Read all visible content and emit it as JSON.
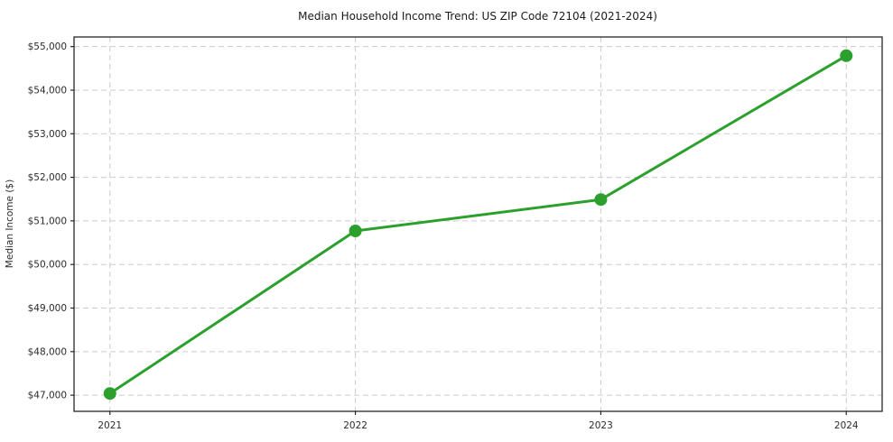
{
  "figure": {
    "title": "Median Household Income Trend: US ZIP Code 72104 (2021-2024)"
  },
  "chart_data": {
    "type": "line",
    "title": "Median Household Income Trend: US ZIP Code 72104 (2021-2024)",
    "xlabel": "",
    "ylabel": "Median Income ($)",
    "categories": [
      "2021",
      "2022",
      "2023",
      "2024"
    ],
    "series": [
      {
        "name": "Median Household Income",
        "values": [
          47040,
          50770,
          51490,
          54790
        ],
        "color": "#2ca02c",
        "marker": "circle",
        "line_width": 3,
        "marker_radius": 7
      }
    ],
    "yticks": [
      47000,
      48000,
      49000,
      50000,
      51000,
      52000,
      53000,
      54000,
      55000
    ],
    "ytick_labels": [
      "$47,000",
      "$48,000",
      "$49,000",
      "$50,000",
      "$51,000",
      "$52,000",
      "$53,000",
      "$54,000",
      "$55,000"
    ],
    "ylim": [
      46630,
      55220
    ],
    "grid": true,
    "grid_style": "dashed",
    "legend": false
  },
  "colors": {
    "line": "#2ca02c",
    "grid": "#cccccc",
    "spine": "#262626",
    "background": "#ffffff",
    "tick_text": "#2b2b2b"
  }
}
